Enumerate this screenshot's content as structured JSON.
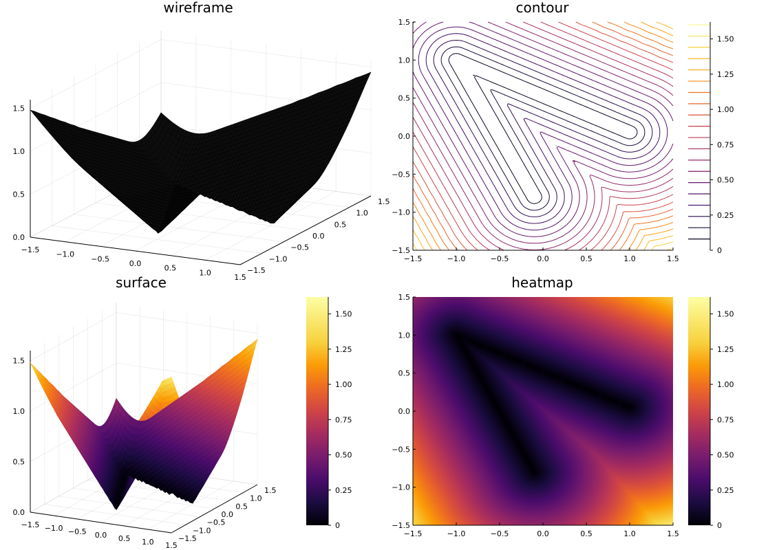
{
  "chart_data": [
    {
      "type": "surface",
      "style": "wireframe",
      "title": "wireframe",
      "x_ticks": [
        "−1.5",
        "−1.0",
        "−0.5",
        "0.0",
        "0.5",
        "1.0",
        "1.5"
      ],
      "y_ticks": [
        "−1.5",
        "−1.0",
        "−0.5",
        "0.0",
        "0.5",
        "1.0",
        "1.5"
      ],
      "z_ticks": [
        "0.0",
        "0.5",
        "1.0",
        "1.5"
      ],
      "xlim": [
        -1.5,
        1.5
      ],
      "ylim": [
        -1.5,
        1.5
      ],
      "zlim": [
        0,
        1.6
      ],
      "color": "#000000",
      "grid": true
    },
    {
      "type": "contour",
      "title": "contour",
      "x_ticks": [
        "−1.5",
        "−1.0",
        "−0.5",
        "0.0",
        "0.5",
        "1.0",
        "1.5"
      ],
      "y_ticks": [
        "−1.5",
        "−1.0",
        "−0.5",
        "0.0",
        "0.5",
        "1.0",
        "1.5"
      ],
      "xlim": [
        -1.5,
        1.5
      ],
      "ylim": [
        -1.5,
        1.5
      ],
      "colorbar_ticks": [
        "0",
        "0.25",
        "0.50",
        "0.75",
        "1.00",
        "1.25",
        "1.50"
      ],
      "clim": [
        0,
        1.62
      ],
      "colormap": "inferno",
      "grid": false
    },
    {
      "type": "surface",
      "title": "surface",
      "x_ticks": [
        "−1.5",
        "−1.0",
        "−0.5",
        "0.0",
        "0.5",
        "1.0",
        "1.5"
      ],
      "y_ticks": [
        "−1.5",
        "−1.0",
        "−0.5",
        "0.0",
        "0.5",
        "1.0",
        "1.5"
      ],
      "z_ticks": [
        "0.0",
        "0.5",
        "1.0",
        "1.5"
      ],
      "xlim": [
        -1.5,
        1.5
      ],
      "ylim": [
        -1.5,
        1.5
      ],
      "zlim": [
        0,
        1.6
      ],
      "colorbar_ticks": [
        "0",
        "0.25",
        "0.50",
        "0.75",
        "1.00",
        "1.25",
        "1.50"
      ],
      "clim": [
        0,
        1.62
      ],
      "colormap": "inferno",
      "grid": true
    },
    {
      "type": "heatmap",
      "title": "heatmap",
      "x_ticks": [
        "−1.5",
        "−1.0",
        "−0.5",
        "0.0",
        "0.5",
        "1.0",
        "1.5"
      ],
      "y_ticks": [
        "−1.5",
        "−1.0",
        "−0.5",
        "0.0",
        "0.5",
        "1.0",
        "1.5"
      ],
      "xlim": [
        -1.5,
        1.5
      ],
      "ylim": [
        -1.5,
        1.5
      ],
      "colorbar_ticks": [
        "0",
        "0.25",
        "0.50",
        "0.75",
        "1.00",
        "1.25",
        "1.50"
      ],
      "clim": [
        0,
        1.62
      ],
      "colormap": "inferno",
      "grid": false
    }
  ]
}
